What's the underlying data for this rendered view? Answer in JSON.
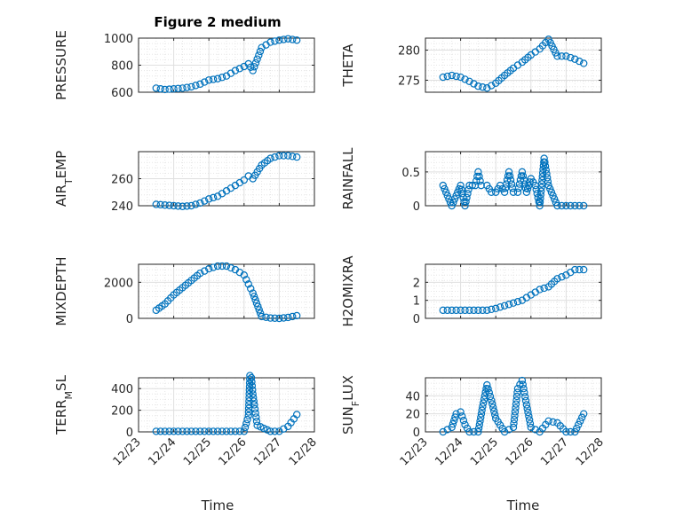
{
  "figure": {
    "title": "Figure 2 medium",
    "x_label": "Time",
    "x_ticks": [
      "12/23",
      "12/24",
      "12/25",
      "12/26",
      "12/27",
      "12/28"
    ]
  },
  "chart_data": [
    {
      "type": "scatter",
      "ylabel": "PRESSURE",
      "ylim": [
        600,
        1000
      ],
      "yticks": [
        600,
        800,
        1000
      ],
      "grid": true,
      "marker_color": "#0072bd",
      "x": [
        "12/23 12:00",
        "12/23 18:00",
        "12/24 00:00",
        "12/24 06:00",
        "12/24 12:00",
        "12/24 18:00",
        "12/25 00:00",
        "12/25 06:00",
        "12/25 12:00",
        "12/25 18:00",
        "12/26 00:00",
        "12/26 03:00",
        "12/26 06:00",
        "12/26 12:00",
        "12/26 18:00",
        "12/27 00:00",
        "12/27 06:00",
        "12/27 12:00"
      ],
      "y": [
        630,
        620,
        625,
        630,
        640,
        660,
        690,
        700,
        720,
        760,
        790,
        810,
        760,
        930,
        970,
        985,
        995,
        985
      ]
    },
    {
      "type": "scatter",
      "ylabel": "THETA",
      "ylim": [
        273,
        282
      ],
      "yticks": [
        275,
        280
      ],
      "grid": true,
      "marker_color": "#0072bd",
      "x": [
        "12/23 12:00",
        "12/23 18:00",
        "12/24 00:00",
        "12/24 06:00",
        "12/24 12:00",
        "12/24 18:00",
        "12/25 00:00",
        "12/25 06:00",
        "12/25 12:00",
        "12/25 18:00",
        "12/26 00:00",
        "12/26 06:00",
        "12/26 12:00",
        "12/26 18:00",
        "12/27 00:00",
        "12/27 06:00",
        "12/27 12:00"
      ],
      "y": [
        275.5,
        275.8,
        275.5,
        274.8,
        274.0,
        273.7,
        274.5,
        275.8,
        277.0,
        278.0,
        279.2,
        280.2,
        281.8,
        279.0,
        279.0,
        278.5,
        277.8
      ]
    },
    {
      "type": "scatter",
      "ylabel": "AIR_TEMP",
      "ylim": [
        240,
        280
      ],
      "yticks": [
        240,
        260
      ],
      "grid": true,
      "marker_color": "#0072bd",
      "x": [
        "12/23 12:00",
        "12/23 18:00",
        "12/24 00:00",
        "12/24 06:00",
        "12/24 12:00",
        "12/24 18:00",
        "12/25 00:00",
        "12/25 06:00",
        "12/25 12:00",
        "12/25 18:00",
        "12/26 00:00",
        "12/26 03:00",
        "12/26 06:00",
        "12/26 12:00",
        "12/26 18:00",
        "12/27 00:00",
        "12/27 06:00",
        "12/27 12:00"
      ],
      "y": [
        241,
        240.5,
        240,
        239.5,
        240,
        242,
        245,
        247,
        251,
        255,
        259,
        262,
        260,
        270,
        275,
        277,
        277,
        276
      ]
    },
    {
      "type": "scatter",
      "ylabel": "RAINFALL",
      "ylim": [
        0,
        0.8
      ],
      "yticks": [
        0,
        0.5
      ],
      "grid": true,
      "marker_color": "#0072bd",
      "x": [
        "12/23 12:00",
        "12/23 18:00",
        "12/24 00:00",
        "12/24 03:00",
        "12/24 06:00",
        "12/24 08:00",
        "12/24 10:00",
        "12/24 12:00",
        "12/24 14:00",
        "12/24 18:00",
        "12/24 21:00",
        "12/25 00:00",
        "12/25 03:00",
        "12/25 06:00",
        "12/25 09:00",
        "12/25 12:00",
        "12/25 15:00",
        "12/25 18:00",
        "12/25 21:00",
        "12/26 00:00",
        "12/26 03:00",
        "12/26 06:00",
        "12/26 09:00",
        "12/26 12:00",
        "12/26 18:00",
        "12/27 00:00",
        "12/27 06:00",
        "12/27 12:00"
      ],
      "y": [
        0.3,
        0,
        0.3,
        0,
        0.3,
        0.3,
        0.3,
        0.5,
        0.3,
        0.3,
        0.2,
        0.2,
        0.3,
        0.2,
        0.5,
        0.2,
        0.2,
        0.5,
        0.2,
        0.4,
        0.3,
        0,
        0.7,
        0.3,
        0,
        0,
        0,
        0
      ]
    },
    {
      "type": "scatter",
      "ylabel": "MIXDEPTH",
      "ylim": [
        0,
        3000
      ],
      "yticks": [
        0,
        2000
      ],
      "grid": true,
      "marker_color": "#0072bd",
      "x": [
        "12/23 12:00",
        "12/23 18:00",
        "12/24 00:00",
        "12/24 06:00",
        "12/24 12:00",
        "12/24 18:00",
        "12/25 00:00",
        "12/25 06:00",
        "12/25 12:00",
        "12/25 18:00",
        "12/26 00:00",
        "12/26 03:00",
        "12/26 06:00",
        "12/26 12:00",
        "12/26 18:00",
        "12/27 00:00",
        "12/27 06:00",
        "12/27 12:00"
      ],
      "y": [
        450,
        800,
        1300,
        1700,
        2100,
        2500,
        2750,
        2900,
        2900,
        2700,
        2400,
        1900,
        1400,
        100,
        20,
        0,
        50,
        150
      ]
    },
    {
      "type": "scatter",
      "ylabel": "H2OMIXRA",
      "ylim": [
        0,
        3
      ],
      "yticks": [
        0,
        1,
        2
      ],
      "grid": true,
      "marker_color": "#0072bd",
      "x": [
        "12/23 12:00",
        "12/23 18:00",
        "12/24 00:00",
        "12/24 06:00",
        "12/24 12:00",
        "12/24 18:00",
        "12/25 00:00",
        "12/25 06:00",
        "12/25 12:00",
        "12/25 18:00",
        "12/26 00:00",
        "12/26 06:00",
        "12/26 12:00",
        "12/26 18:00",
        "12/27 00:00",
        "12/27 06:00",
        "12/27 12:00"
      ],
      "y": [
        0.45,
        0.45,
        0.45,
        0.45,
        0.45,
        0.45,
        0.55,
        0.7,
        0.85,
        1.0,
        1.3,
        1.6,
        1.75,
        2.2,
        2.4,
        2.7,
        2.7
      ]
    },
    {
      "type": "scatter",
      "ylabel": "TERR_MSL",
      "ylim": [
        0,
        500
      ],
      "yticks": [
        0,
        200,
        400
      ],
      "grid": true,
      "marker_color": "#0072bd",
      "x": [
        "12/23 12:00",
        "12/24 00:00",
        "12/24 12:00",
        "12/25 00:00",
        "12/25 12:00",
        "12/26 00:00",
        "12/26 03:00",
        "12/26 04:00",
        "12/26 05:00",
        "12/26 06:00",
        "12/26 07:00",
        "12/26 09:00",
        "12/26 18:00",
        "12/27 00:00",
        "12/27 06:00",
        "12/27 10:00",
        "12/27 12:00"
      ],
      "y": [
        5,
        5,
        5,
        5,
        5,
        5,
        150,
        520,
        500,
        350,
        250,
        60,
        5,
        5,
        50,
        120,
        160
      ]
    },
    {
      "type": "scatter",
      "ylabel": "SUN_FLUX",
      "ylim": [
        0,
        60
      ],
      "yticks": [
        0,
        20,
        40
      ],
      "grid": true,
      "marker_color": "#0072bd",
      "x": [
        "12/23 12:00",
        "12/23 18:00",
        "12/23 21:00",
        "12/24 00:00",
        "12/24 03:00",
        "12/24 06:00",
        "12/24 12:00",
        "12/24 15:00",
        "12/24 18:00",
        "12/24 21:00",
        "12/25 00:00",
        "12/25 06:00",
        "12/25 12:00",
        "12/25 15:00",
        "12/25 18:00",
        "12/25 21:00",
        "12/26 00:00",
        "12/26 06:00",
        "12/26 12:00",
        "12/26 18:00",
        "12/27 00:00",
        "12/27 06:00",
        "12/27 12:00"
      ],
      "y": [
        0,
        5,
        20,
        22,
        8,
        0,
        0,
        28,
        52,
        35,
        15,
        0,
        5,
        48,
        57,
        30,
        5,
        0,
        12,
        10,
        0,
        0,
        20
      ]
    }
  ]
}
